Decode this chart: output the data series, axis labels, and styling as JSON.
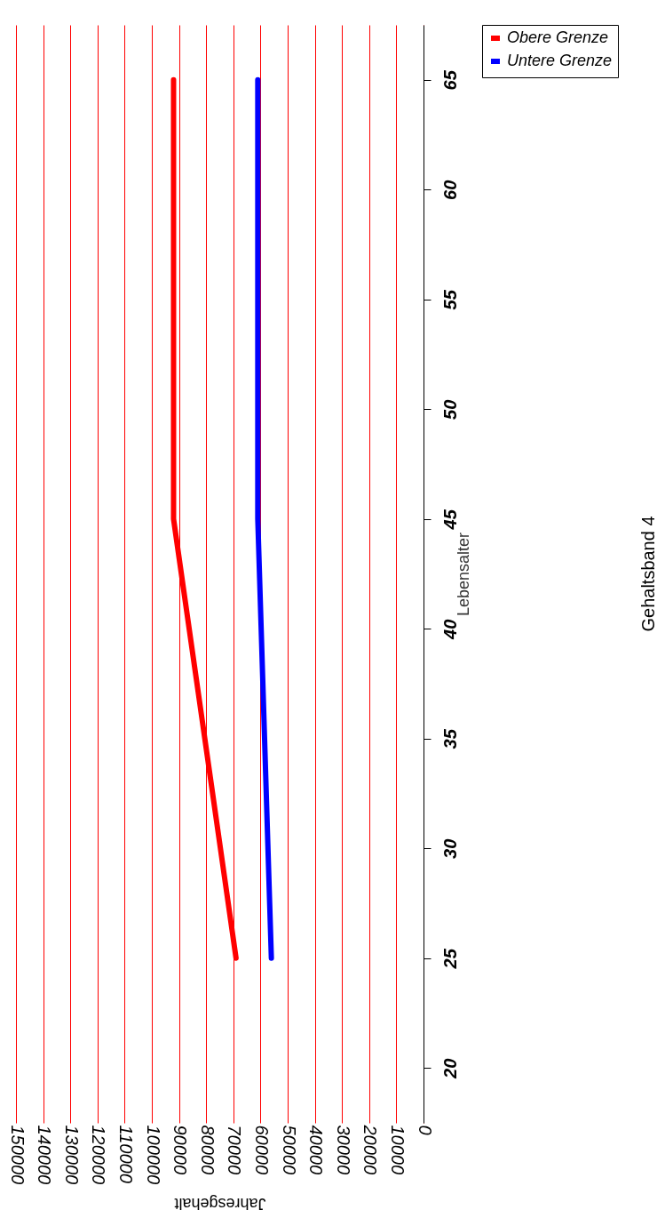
{
  "chart_data": {
    "type": "line",
    "title": "Gehaltsband 4",
    "xlabel": "Jahresgehalt",
    "ylabel": "Lebensalter",
    "series": [
      {
        "name": "Obere Grenze",
        "color": "#ff0000",
        "x": [
          69000,
          92000,
          92000
        ],
        "values": [
          25,
          45,
          65
        ]
      },
      {
        "name": "Untere Grenze",
        "color": "#0000ff",
        "x": [
          56000,
          61000,
          61000
        ],
        "values": [
          25,
          45,
          65
        ]
      }
    ],
    "xlim": [
      150000,
      0
    ],
    "xticks": [
      150000,
      140000,
      130000,
      120000,
      110000,
      100000,
      90000,
      80000,
      70000,
      60000,
      50000,
      40000,
      30000,
      20000,
      10000,
      0
    ],
    "ylim": [
      17.5,
      67.5
    ],
    "yticks": [
      20,
      25,
      30,
      35,
      40,
      45,
      50,
      55,
      60,
      65
    ],
    "grid": "x",
    "legend": "right",
    "marker": "none",
    "line_style": "solid"
  }
}
